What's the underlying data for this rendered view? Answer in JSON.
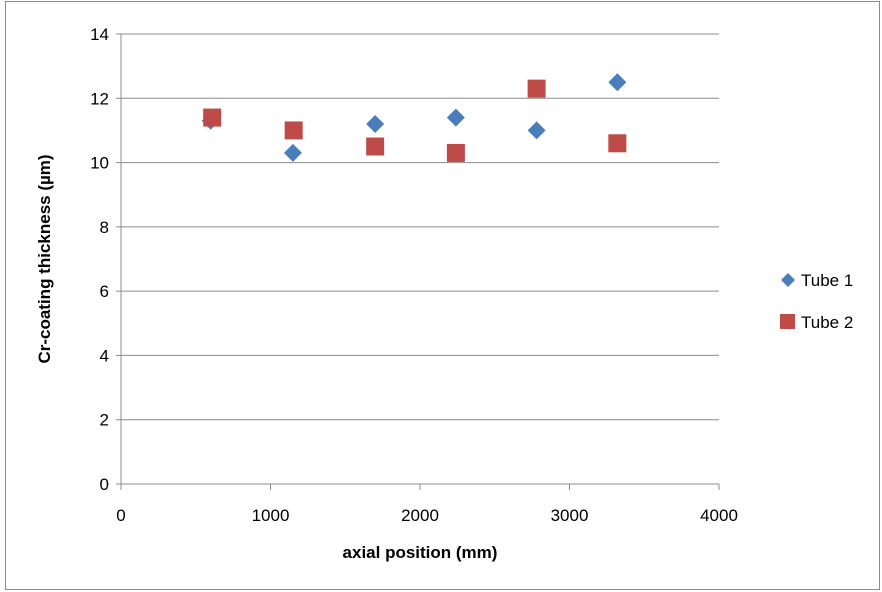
{
  "chart_data": {
    "type": "scatter",
    "xlabel": "axial position (mm)",
    "ylabel": "Cr-coating thickness (µm)",
    "xlim": [
      0,
      4000
    ],
    "ylim": [
      0,
      14
    ],
    "xticks": [
      0,
      1000,
      2000,
      3000,
      4000
    ],
    "yticks": [
      0,
      2,
      4,
      6,
      8,
      10,
      12,
      14
    ],
    "grid": "horizontal",
    "legend": "right",
    "series": [
      {
        "name": "Tube 1",
        "marker": "diamond",
        "color": "#4a7ebb",
        "x": [
          600,
          1150,
          1700,
          2240,
          2780,
          3320
        ],
        "y": [
          11.3,
          10.3,
          11.2,
          11.4,
          11.0,
          12.5
        ]
      },
      {
        "name": "Tube 2",
        "marker": "square",
        "color": "#be4b48",
        "x": [
          610,
          1155,
          1700,
          2240,
          2780,
          3320
        ],
        "y": [
          11.4,
          11.0,
          10.5,
          10.3,
          12.3,
          10.6
        ]
      }
    ]
  }
}
